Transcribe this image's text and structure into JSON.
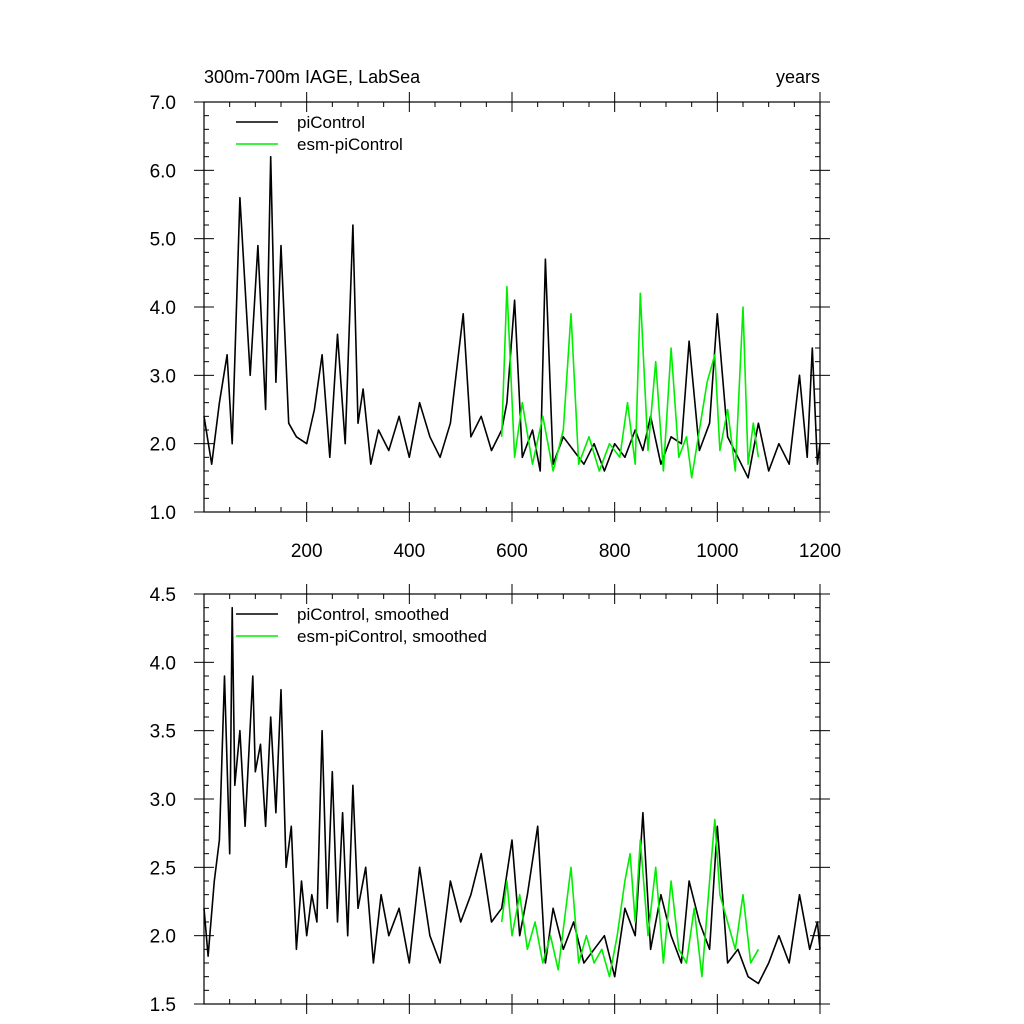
{
  "colors": {
    "piControl": "#000000",
    "esm_piControl": "#00ee00",
    "background": "#ffffff"
  },
  "chart_data": [
    {
      "type": "line",
      "title": "300m-700m IAGE, LabSea",
      "right_title": "years",
      "xlabel": "",
      "ylabel": "",
      "xlim": [
        0,
        1200
      ],
      "ylim": [
        1.0,
        7.0
      ],
      "xticks": [
        200,
        400,
        600,
        800,
        1000,
        1200
      ],
      "xtick_labels": [
        "200",
        "400",
        "600",
        "800",
        "1000",
        "1200"
      ],
      "yticks": [
        1.0,
        2.0,
        3.0,
        4.0,
        5.0,
        6.0,
        7.0
      ],
      "ytick_labels": [
        "1.0",
        "2.0",
        "3.0",
        "4.0",
        "5.0",
        "6.0",
        "7.0"
      ],
      "grid": false,
      "legend_position": "top-left",
      "series": [
        {
          "name": "piControl",
          "color": "#000000",
          "x": [
            0,
            15,
            30,
            45,
            55,
            70,
            90,
            105,
            120,
            130,
            140,
            150,
            165,
            180,
            200,
            215,
            230,
            245,
            260,
            275,
            290,
            300,
            310,
            325,
            340,
            360,
            380,
            400,
            420,
            440,
            460,
            480,
            505,
            520,
            540,
            560,
            580,
            590,
            605,
            620,
            640,
            655,
            665,
            680,
            700,
            720,
            740,
            760,
            780,
            800,
            820,
            840,
            855,
            870,
            890,
            910,
            930,
            945,
            965,
            985,
            1000,
            1020,
            1040,
            1060,
            1080,
            1100,
            1120,
            1140,
            1160,
            1175,
            1185,
            1195,
            1200
          ],
          "y": [
            2.4,
            1.7,
            2.6,
            3.3,
            2.0,
            5.6,
            3.0,
            4.9,
            2.5,
            6.2,
            2.9,
            4.9,
            2.3,
            2.1,
            2.0,
            2.5,
            3.3,
            1.8,
            3.6,
            2.0,
            5.2,
            2.3,
            2.8,
            1.7,
            2.2,
            1.9,
            2.4,
            1.8,
            2.6,
            2.1,
            1.8,
            2.3,
            3.9,
            2.1,
            2.4,
            1.9,
            2.2,
            2.6,
            4.1,
            1.8,
            2.2,
            1.6,
            4.7,
            1.7,
            2.1,
            1.9,
            1.7,
            2.0,
            1.6,
            2.0,
            1.8,
            2.2,
            1.9,
            2.4,
            1.7,
            2.1,
            2.0,
            3.5,
            1.9,
            2.3,
            3.9,
            2.1,
            1.8,
            1.5,
            2.3,
            1.6,
            2.0,
            1.7,
            3.0,
            1.8,
            3.4,
            1.7,
            2.0
          ]
        },
        {
          "name": "esm-piControl",
          "color": "#00ee00",
          "x": [
            580,
            590,
            605,
            620,
            640,
            660,
            680,
            700,
            715,
            730,
            750,
            770,
            790,
            810,
            825,
            840,
            850,
            865,
            880,
            895,
            910,
            925,
            940,
            950,
            965,
            980,
            995,
            1005,
            1020,
            1035,
            1050,
            1060,
            1070,
            1080
          ],
          "y": [
            2.1,
            4.3,
            1.8,
            2.6,
            1.7,
            2.4,
            1.6,
            2.2,
            3.9,
            1.7,
            2.1,
            1.6,
            2.0,
            1.8,
            2.6,
            1.7,
            4.2,
            1.9,
            3.2,
            1.6,
            3.4,
            1.8,
            2.1,
            1.5,
            2.2,
            2.9,
            3.3,
            1.9,
            2.5,
            1.6,
            4.0,
            1.7,
            2.3,
            1.8
          ]
        }
      ]
    },
    {
      "type": "line",
      "title": "",
      "xlabel": "",
      "ylabel": "",
      "xlim": [
        0,
        1200
      ],
      "ylim": [
        1.5,
        4.5
      ],
      "xticks": [
        200,
        400,
        600,
        800,
        1000,
        1200
      ],
      "xtick_labels": [],
      "yticks": [
        1.5,
        2.0,
        2.5,
        3.0,
        3.5,
        4.0,
        4.5
      ],
      "ytick_labels": [
        "1.5",
        "2.0",
        "2.5",
        "3.0",
        "3.5",
        "4.0",
        "4.5"
      ],
      "grid": false,
      "legend_position": "top-left",
      "series": [
        {
          "name": "piControl, smoothed",
          "color": "#000000",
          "x": [
            0,
            8,
            20,
            30,
            40,
            50,
            55,
            60,
            70,
            80,
            95,
            100,
            110,
            120,
            130,
            140,
            150,
            160,
            170,
            180,
            190,
            200,
            210,
            220,
            230,
            240,
            250,
            260,
            270,
            280,
            290,
            300,
            315,
            330,
            345,
            360,
            380,
            400,
            420,
            440,
            460,
            480,
            500,
            520,
            540,
            560,
            580,
            600,
            615,
            630,
            650,
            665,
            680,
            700,
            720,
            740,
            760,
            780,
            800,
            820,
            840,
            855,
            870,
            890,
            910,
            930,
            945,
            965,
            985,
            1000,
            1020,
            1040,
            1060,
            1080,
            1100,
            1120,
            1140,
            1160,
            1180,
            1195,
            1200
          ],
          "y": [
            2.2,
            1.85,
            2.4,
            2.7,
            3.9,
            2.6,
            4.4,
            3.1,
            3.5,
            2.8,
            3.9,
            3.2,
            3.4,
            2.8,
            3.6,
            2.9,
            3.8,
            2.5,
            2.8,
            1.9,
            2.4,
            2.0,
            2.3,
            2.1,
            3.5,
            2.2,
            3.2,
            2.1,
            2.9,
            2.0,
            3.1,
            2.2,
            2.5,
            1.8,
            2.3,
            2.0,
            2.2,
            1.8,
            2.5,
            2.0,
            1.8,
            2.4,
            2.1,
            2.3,
            2.6,
            2.1,
            2.2,
            2.7,
            2.0,
            2.3,
            2.8,
            1.8,
            2.2,
            1.9,
            2.1,
            1.8,
            1.9,
            2.0,
            1.7,
            2.2,
            2.0,
            2.9,
            1.9,
            2.3,
            2.0,
            1.8,
            2.4,
            2.1,
            1.9,
            2.8,
            1.8,
            1.9,
            1.7,
            1.65,
            1.8,
            2.0,
            1.8,
            2.3,
            1.9,
            2.1,
            1.9
          ]
        },
        {
          "name": "esm-piControl, smoothed",
          "color": "#00ee00",
          "x": [
            580,
            590,
            600,
            615,
            630,
            645,
            660,
            675,
            690,
            705,
            715,
            730,
            745,
            760,
            775,
            790,
            805,
            820,
            830,
            840,
            850,
            865,
            880,
            895,
            910,
            925,
            940,
            955,
            970,
            985,
            995,
            1005,
            1020,
            1035,
            1050,
            1065,
            1080
          ],
          "y": [
            2.1,
            2.4,
            2.0,
            2.3,
            1.9,
            2.1,
            1.8,
            2.0,
            1.75,
            2.2,
            2.5,
            1.8,
            2.0,
            1.8,
            1.9,
            1.7,
            2.0,
            2.4,
            2.6,
            2.1,
            2.7,
            2.0,
            2.5,
            1.8,
            2.4,
            1.9,
            1.8,
            2.2,
            1.7,
            2.4,
            2.85,
            2.3,
            2.1,
            1.9,
            2.3,
            1.8,
            1.9
          ]
        }
      ]
    }
  ]
}
